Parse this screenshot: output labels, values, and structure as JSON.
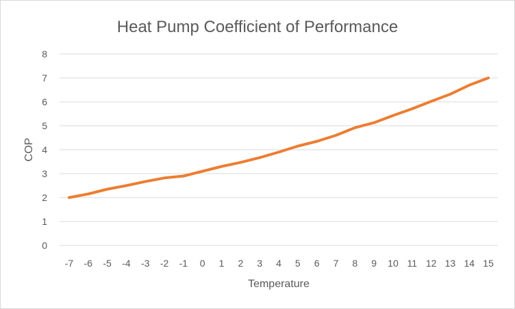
{
  "chart_data": {
    "type": "line",
    "title": "Heat Pump Coefficient of Performance",
    "xlabel": "Temperature",
    "ylabel": "COP",
    "categories": [
      "-7",
      "-6",
      "-5",
      "-4",
      "-3",
      "-2",
      "-1",
      "0",
      "1",
      "2",
      "3",
      "4",
      "5",
      "6",
      "7",
      "8",
      "9",
      "10",
      "11",
      "12",
      "13",
      "14",
      "15"
    ],
    "series": [
      {
        "values": [
          2.0,
          2.15,
          2.35,
          2.5,
          2.67,
          2.82,
          2.9,
          3.1,
          3.3,
          3.47,
          3.67,
          3.9,
          4.15,
          4.35,
          4.6,
          4.92,
          5.13,
          5.43,
          5.71,
          6.02,
          6.32,
          6.7,
          7.0
        ],
        "color": "#ed7d31"
      }
    ],
    "ylim": [
      0,
      8
    ],
    "yticks": [
      "0",
      "1",
      "2",
      "3",
      "4",
      "5",
      "6",
      "7",
      "8"
    ],
    "grid": true,
    "legend": "none"
  }
}
